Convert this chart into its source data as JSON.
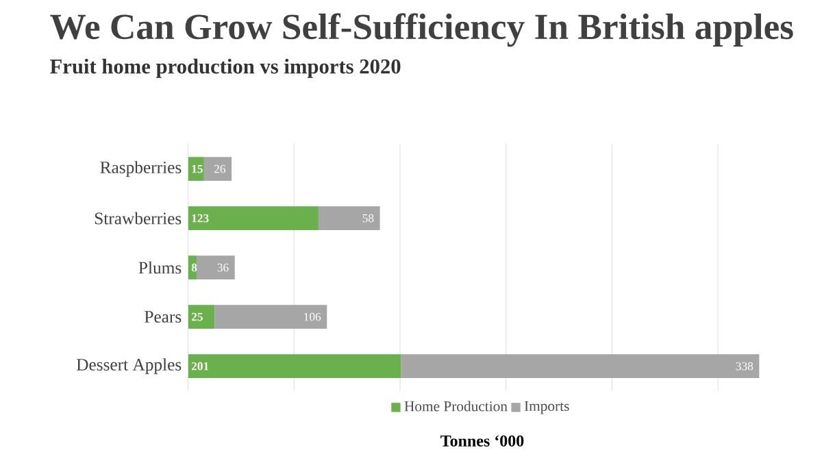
{
  "chart_data": {
    "type": "bar",
    "orientation": "horizontal",
    "stacked": true,
    "title": "We Can Grow Self-Sufficiency In British apples",
    "subtitle": "Fruit home production vs imports 2020",
    "xlabel": "Tonnes ‘000",
    "categories": [
      "Raspberries",
      "Strawberries",
      "Plums",
      "Pears",
      "Dessert Apples"
    ],
    "series": [
      {
        "name": "Home Production",
        "color": "#6ab04c",
        "values": [
          15,
          123,
          8,
          25,
          201
        ]
      },
      {
        "name": "Imports",
        "color": "#a6a6a6",
        "values": [
          26,
          58,
          36,
          106,
          338
        ]
      }
    ],
    "grid": "x",
    "legend": "bottom",
    "tick_labels": "y",
    "data_labels": true
  }
}
